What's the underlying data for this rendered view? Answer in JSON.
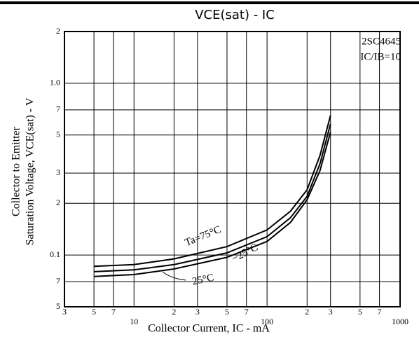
{
  "chart_data": {
    "type": "line",
    "title": "VCE(sat) - IC",
    "x_label": "Collector Current, IC - mA",
    "y_label_line1": "Collector to Emitter",
    "y_label_line2": "Saturation Voltage, VCE(sat) - V",
    "annotations": [
      "2SC4645",
      "IC/IB=10"
    ],
    "x_log": true,
    "y_log": true,
    "grid": true,
    "xlim": [
      3,
      1000
    ],
    "ylim": [
      0.05,
      2
    ],
    "xticks": [
      3,
      5,
      7,
      10,
      {
        "value": 20,
        "label": "2"
      },
      {
        "value": 30,
        "label": "3"
      },
      {
        "value": 50,
        "label": "5"
      },
      {
        "value": 70,
        "label": "7"
      },
      100,
      {
        "value": 200,
        "label": "2"
      },
      {
        "value": 300,
        "label": "3"
      },
      {
        "value": 500,
        "label": "5"
      },
      {
        "value": 700,
        "label": "7"
      },
      1000
    ],
    "yticks": [
      {
        "value": 0.05,
        "label": "5"
      },
      {
        "value": 0.07,
        "label": "7"
      },
      0.1,
      {
        "value": 0.2,
        "label": "2"
      },
      {
        "value": 0.3,
        "label": "3"
      },
      {
        "value": 0.5,
        "label": "5"
      },
      {
        "value": 0.7,
        "label": "7"
      },
      {
        "value": 1,
        "label": "1.0"
      },
      2
    ],
    "x": [
      5,
      10,
      20,
      50,
      100,
      150,
      200,
      250,
      300
    ],
    "series": [
      {
        "name": "Ta=75°C",
        "color": "#000000",
        "values": [
          0.086,
          0.088,
          0.095,
          0.112,
          0.14,
          0.18,
          0.24,
          0.38,
          0.65
        ]
      },
      {
        "name": "−25°C",
        "color": "#000000",
        "values": [
          0.08,
          0.082,
          0.088,
          0.103,
          0.128,
          0.165,
          0.22,
          0.34,
          0.58
        ]
      },
      {
        "name": "25°C",
        "color": "#000000",
        "values": [
          0.075,
          0.077,
          0.083,
          0.097,
          0.12,
          0.155,
          0.21,
          0.31,
          0.52
        ]
      }
    ]
  }
}
